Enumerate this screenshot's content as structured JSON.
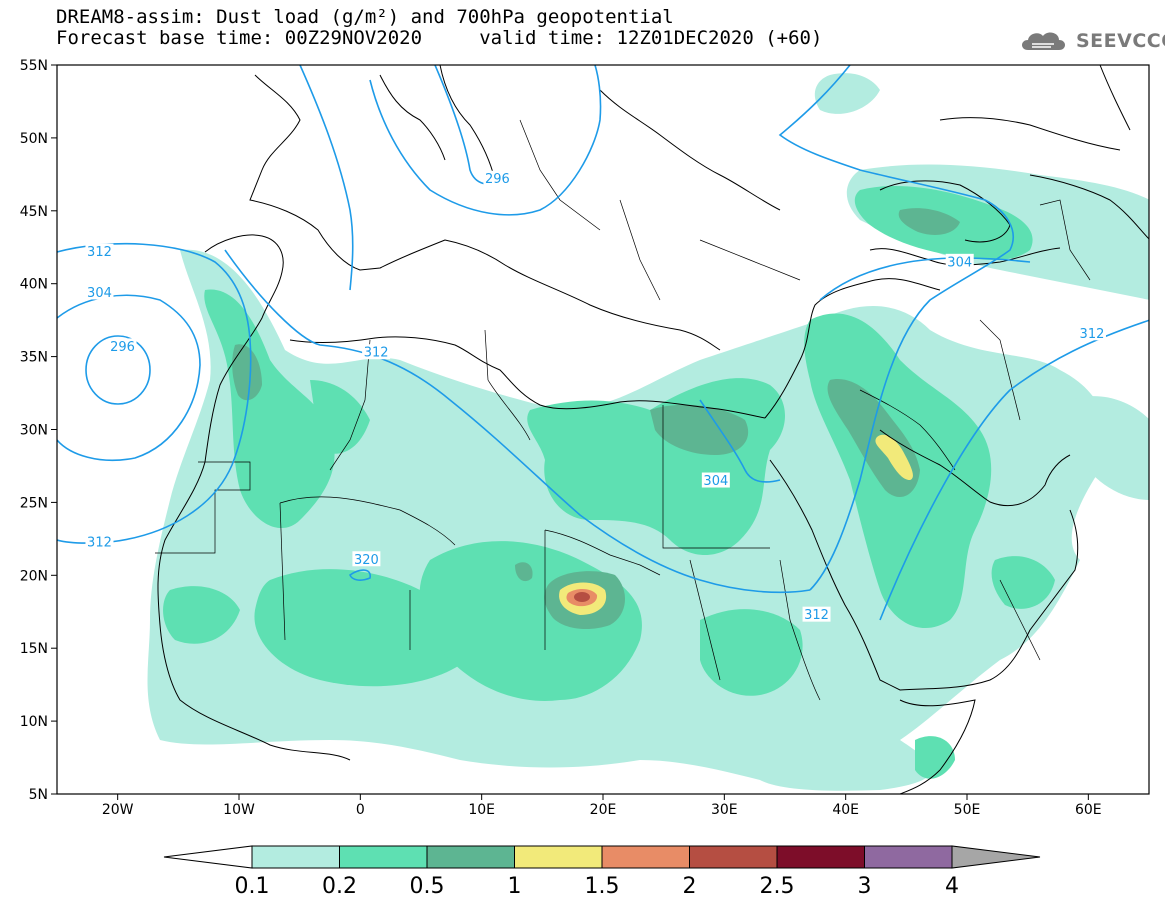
{
  "title": {
    "line1": "DREAM8-assim: Dust load (g/m²) and 700hPa geopotential",
    "line2": "Forecast base time: 00Z29NOV2020     valid time: 12Z01DEC2020 (+60)"
  },
  "logo": {
    "text": "SEEVCCC",
    "icon": "cloud-logo-icon"
  },
  "map": {
    "lon_range": [
      -25,
      65
    ],
    "lat_range": [
      5,
      55
    ],
    "lat_ticks": [
      {
        "value": 55,
        "label": "55N"
      },
      {
        "value": 50,
        "label": "50N"
      },
      {
        "value": 45,
        "label": "45N"
      },
      {
        "value": 40,
        "label": "40N"
      },
      {
        "value": 35,
        "label": "35N"
      },
      {
        "value": 30,
        "label": "30N"
      },
      {
        "value": 25,
        "label": "25N"
      },
      {
        "value": 20,
        "label": "20N"
      },
      {
        "value": 15,
        "label": "15N"
      },
      {
        "value": 10,
        "label": "10N"
      },
      {
        "value": 5,
        "label": "5N"
      }
    ],
    "lon_ticks": [
      {
        "value": -20,
        "label": "20W"
      },
      {
        "value": -10,
        "label": "10W"
      },
      {
        "value": 0,
        "label": "0"
      },
      {
        "value": 10,
        "label": "10E"
      },
      {
        "value": 20,
        "label": "20E"
      },
      {
        "value": 30,
        "label": "30E"
      },
      {
        "value": 40,
        "label": "40E"
      },
      {
        "value": 50,
        "label": "50E"
      },
      {
        "value": 60,
        "label": "60E"
      }
    ],
    "contour_labels": [
      {
        "text": "312",
        "lon": -21.5,
        "lat": 42.2
      },
      {
        "text": "304",
        "lon": -21.5,
        "lat": 39.4
      },
      {
        "text": "296",
        "lon": -19.6,
        "lat": 35.7
      },
      {
        "text": "312",
        "lon": -21.5,
        "lat": 22.3
      },
      {
        "text": "312",
        "lon": 1.3,
        "lat": 35.3
      },
      {
        "text": "296",
        "lon": 11.3,
        "lat": 47.2
      },
      {
        "text": "304",
        "lon": 29.3,
        "lat": 26.5
      },
      {
        "text": "320",
        "lon": 0.5,
        "lat": 21.1
      },
      {
        "text": "312",
        "lon": 37.6,
        "lat": 17.3
      },
      {
        "text": "304",
        "lon": 49.4,
        "lat": 41.5
      },
      {
        "text": "312",
        "lon": 60.3,
        "lat": 36.6
      }
    ]
  },
  "colorbar": {
    "labels": [
      "0.1",
      "0.2",
      "0.5",
      "1",
      "1.5",
      "2",
      "2.5",
      "3",
      "4"
    ],
    "colors": [
      "#ffffff",
      "#b3ece0",
      "#5ee0b2",
      "#5db592",
      "#f2ea7a",
      "#e88c66",
      "#b54e42",
      "#7d0d29",
      "#8f69a0",
      "#a6a6a6"
    ]
  },
  "colors": {
    "contour": "#1e9be8",
    "dust_0_1": "#b3ece0",
    "dust_0_2": "#5ee0b2",
    "dust_0_5": "#5db592",
    "dust_1": "#f2ea7a",
    "dust_1_5": "#e88c66",
    "dust_2": "#b54e42"
  }
}
